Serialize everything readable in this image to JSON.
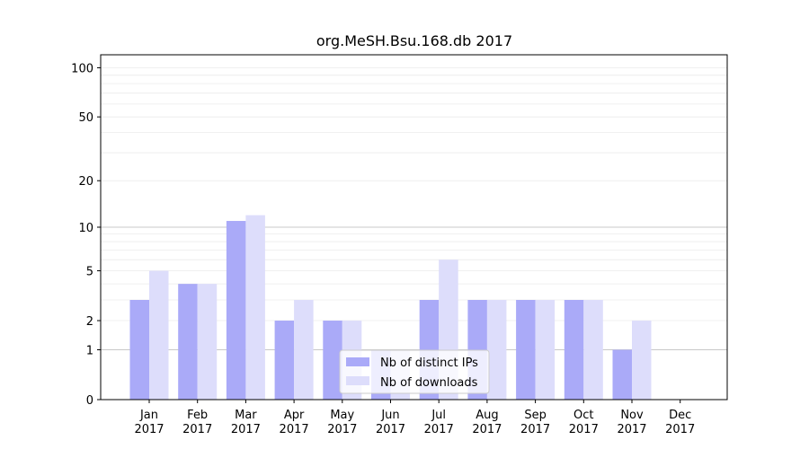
{
  "chart_data": {
    "type": "bar",
    "title": "org.MeSH.Bsu.168.db 2017",
    "xlabel": "",
    "ylabel": "",
    "y_scale": "log1p",
    "ylim": [
      0,
      120
    ],
    "y_ticks": [
      0,
      1,
      2,
      5,
      10,
      20,
      50,
      100
    ],
    "grid": true,
    "legend_position": "lower-center",
    "categories": [
      [
        "Jan",
        "2017"
      ],
      [
        "Feb",
        "2017"
      ],
      [
        "Mar",
        "2017"
      ],
      [
        "Apr",
        "2017"
      ],
      [
        "May",
        "2017"
      ],
      [
        "Jun",
        "2017"
      ],
      [
        "Jul",
        "2017"
      ],
      [
        "Aug",
        "2017"
      ],
      [
        "Sep",
        "2017"
      ],
      [
        "Oct",
        "2017"
      ],
      [
        "Nov",
        "2017"
      ],
      [
        "Dec",
        "2017"
      ]
    ],
    "series": [
      {
        "name": "Nb of distinct IPs",
        "color": "#aaaaf8",
        "values": [
          3,
          4,
          11,
          2,
          2,
          1,
          3,
          3,
          3,
          3,
          1,
          0
        ]
      },
      {
        "name": "Nb of downloads",
        "color": "#ddddfb",
        "values": [
          5,
          4,
          12,
          3,
          2,
          1,
          6,
          3,
          3,
          3,
          2,
          0
        ]
      }
    ]
  }
}
